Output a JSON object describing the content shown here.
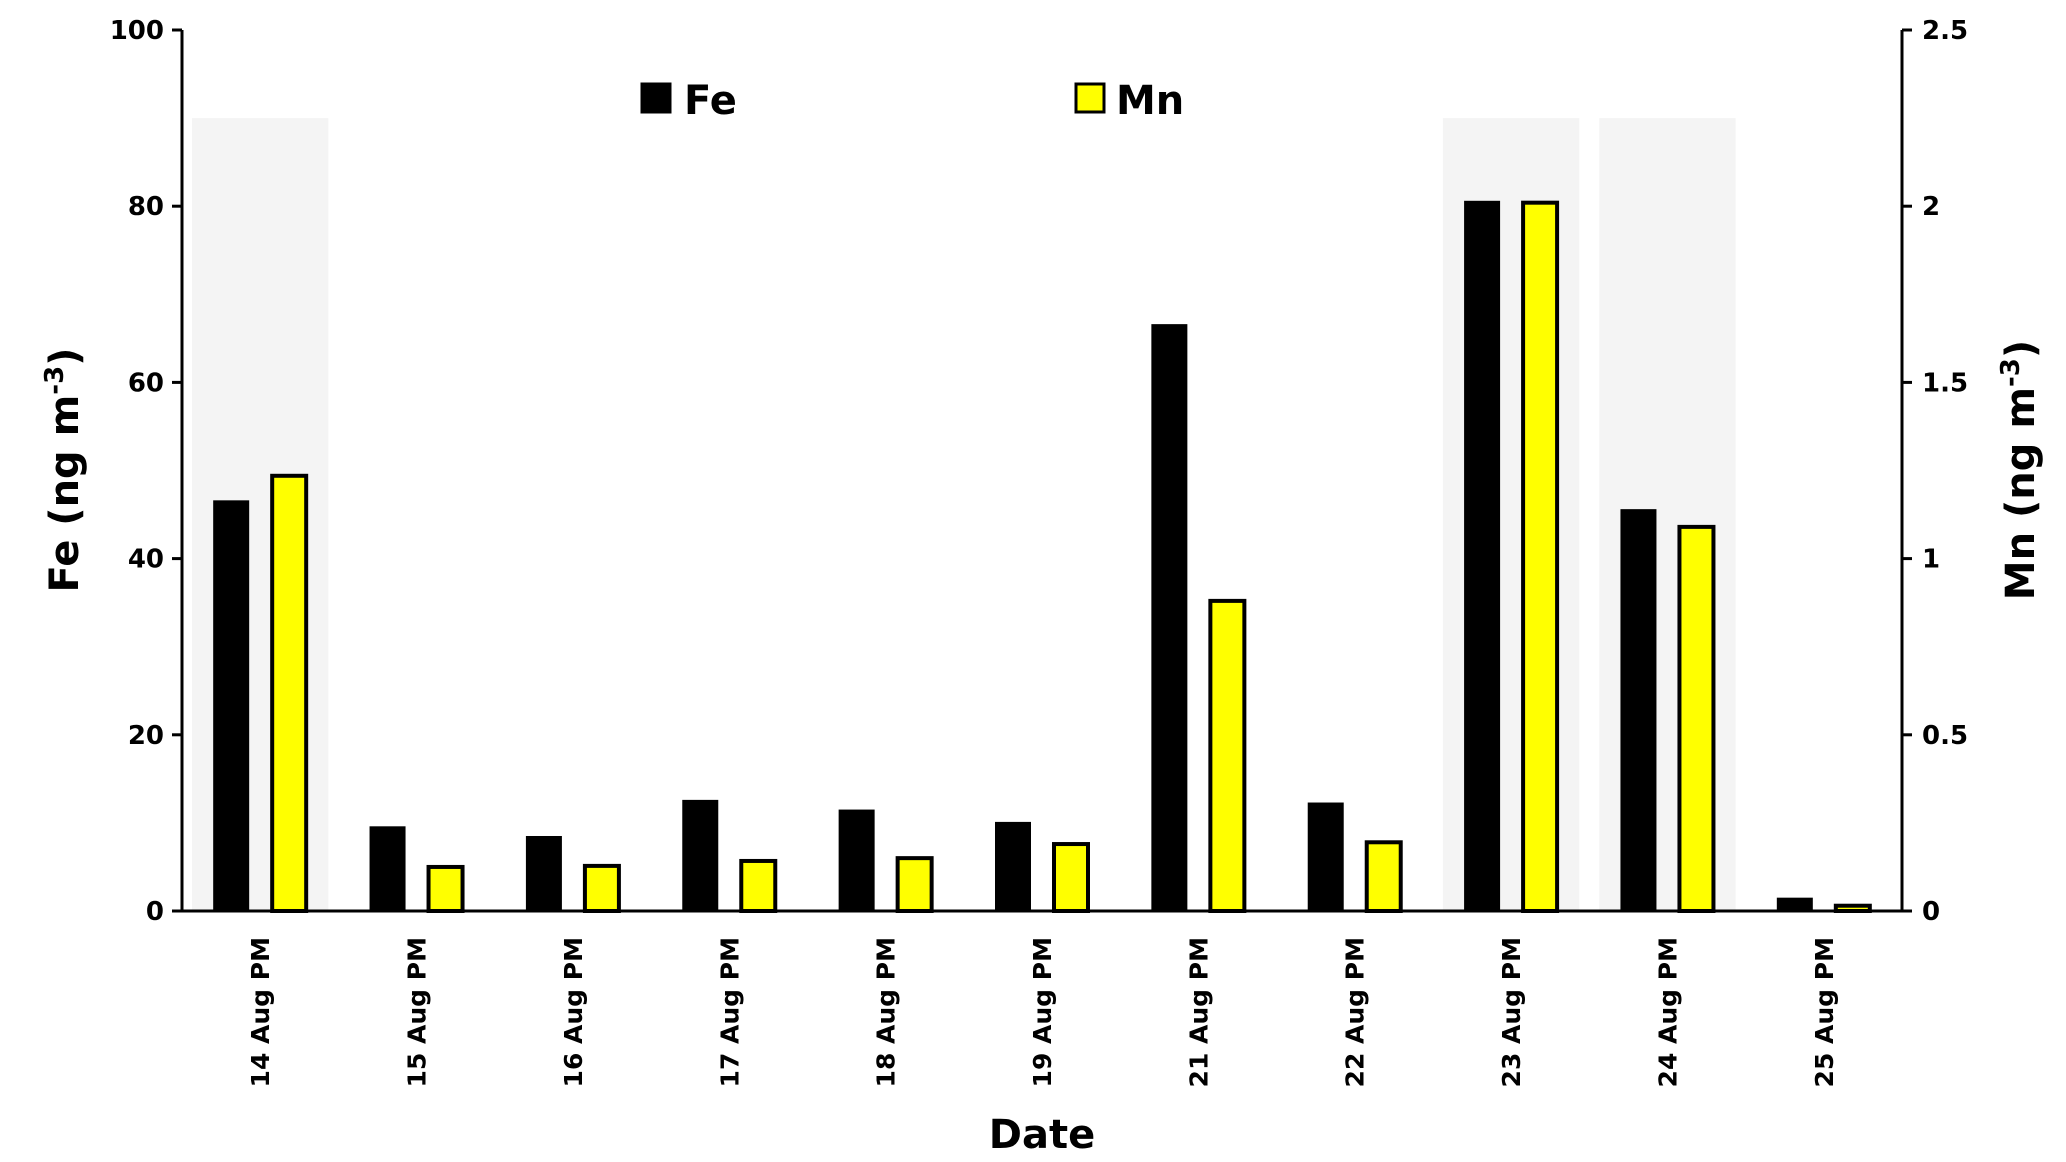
{
  "chart_data": {
    "type": "bar",
    "categories": [
      "14 Aug PM",
      "15 Aug PM",
      "16 Aug PM",
      "17 Aug PM",
      "18 Aug PM",
      "19 Aug PM",
      "21 Aug PM",
      "22 Aug PM",
      "23 Aug PM",
      "24 Aug PM",
      "25 Aug PM"
    ],
    "series": [
      {
        "name": "Fe",
        "axis": "left",
        "color": "#000000",
        "values": [
          46.5,
          9.5,
          8.4,
          12.5,
          11.4,
          10.0,
          66.5,
          12.2,
          80.5,
          45.5,
          1.4
        ]
      },
      {
        "name": "Mn",
        "axis": "right",
        "color": "#ffff00",
        "values": [
          1.235,
          0.125,
          0.128,
          0.142,
          0.15,
          0.19,
          0.88,
          0.195,
          2.01,
          1.09,
          0.015
        ]
      }
    ],
    "highlighted_categories": [
      "14 Aug PM",
      "23 Aug PM",
      "24 Aug PM"
    ],
    "highlight_color": "#f4f4f4",
    "xlabel": "Date",
    "ylabel_left": {
      "base": "Fe (ng m",
      "sup": "-3",
      "close": ")"
    },
    "ylabel_right": {
      "base": "Mn (ng m",
      "sup": "-3",
      "close": ")"
    },
    "ylim_left": [
      0,
      100
    ],
    "ylim_right": [
      0,
      2.5
    ],
    "yticks_left": [
      "0",
      "20",
      "40",
      "60",
      "80",
      "100"
    ],
    "yticks_right": [
      "0",
      "0.5",
      "1",
      "1.5",
      "2",
      "2.5"
    ],
    "legend": [
      {
        "label": "Fe",
        "color": "#000000"
      },
      {
        "label": "Mn",
        "color": "#ffff00"
      }
    ],
    "legend_position": "top-center",
    "grid": false
  }
}
